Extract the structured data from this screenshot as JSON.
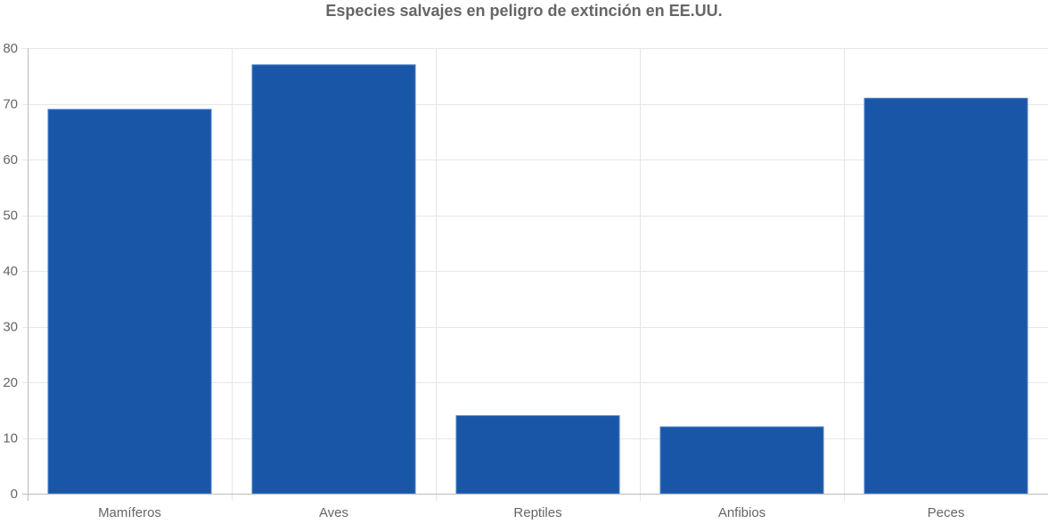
{
  "chart_data": {
    "type": "bar",
    "title": "Especies salvajes en peligro de extinción en EE.UU.",
    "xlabel": "",
    "ylabel": "",
    "categories": [
      "Mamíferos",
      "Aves",
      "Reptiles",
      "Anfibios",
      "Peces"
    ],
    "values": [
      69,
      77,
      14,
      12,
      71
    ],
    "ylim": [
      0,
      80
    ],
    "yticks": [
      "0",
      "10",
      "20",
      "30",
      "40",
      "50",
      "60",
      "70",
      "80"
    ],
    "grid": true,
    "legend": "none",
    "colors": {
      "bar_fill": "#1a56a8",
      "bar_stroke": "#4a7fc4",
      "grid": "#e6e6e6",
      "axis": "#bdbdbd",
      "text": "#666666"
    }
  }
}
